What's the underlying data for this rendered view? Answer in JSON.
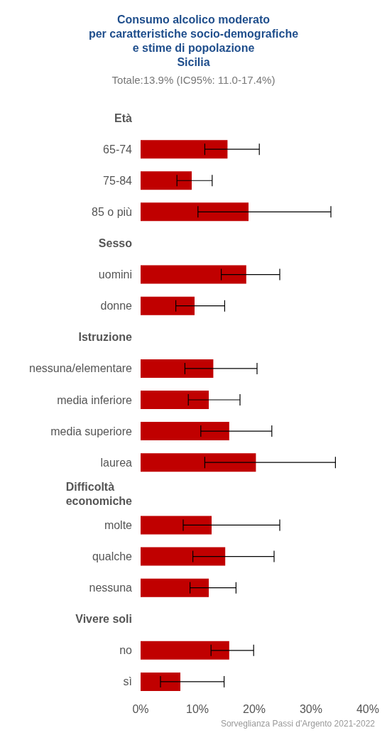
{
  "chart_data": {
    "type": "bar",
    "orientation": "horizontal",
    "title": "Consumo alcolico moderato\nper caratteristiche socio-demografiche\ne stime di popolazione\nSicilia",
    "subtitle": "Totale:13.9% (IC95%: 11.0-17.4%)",
    "categories": [
      "Età",
      "65-74",
      "75-84",
      "85 o più",
      "Sesso",
      "uomini",
      "donne",
      "Istruzione",
      "nessuna/elementare",
      "media inferiore",
      "media superiore",
      "laurea",
      "Difficoltà\neconomiche",
      "molte",
      "qualche",
      "nessuna",
      "Vivere soli",
      "no",
      "sì"
    ],
    "values": [
      null,
      15.3,
      9.0,
      19.0,
      null,
      18.6,
      9.5,
      null,
      12.8,
      12.0,
      15.6,
      20.3,
      null,
      12.5,
      14.9,
      12.0,
      null,
      15.6,
      7.0
    ],
    "errors": [
      null,
      [
        11.3,
        20.9
      ],
      [
        6.4,
        12.6
      ],
      [
        10.1,
        33.5
      ],
      null,
      [
        14.2,
        24.5
      ],
      [
        6.2,
        14.8
      ],
      null,
      [
        7.8,
        20.5
      ],
      [
        8.4,
        17.5
      ],
      [
        10.6,
        23.1
      ],
      [
        11.3,
        34.3
      ],
      null,
      [
        7.5,
        24.5
      ],
      [
        9.2,
        23.5
      ],
      [
        8.7,
        16.8
      ],
      null,
      [
        12.4,
        19.9
      ],
      [
        3.5,
        14.7
      ]
    ],
    "color": "#c00000",
    "xlim": [
      0,
      40
    ],
    "xticks": [
      {
        "value": 0,
        "label": "0%"
      },
      {
        "value": 10,
        "label": "10%"
      },
      {
        "value": 20,
        "label": "20%"
      },
      {
        "value": 30,
        "label": "30%"
      },
      {
        "value": 40,
        "label": "40%"
      }
    ],
    "grid": false,
    "annotations": [
      "Sorveglianza Passi d'Argento 2021-2022"
    ]
  }
}
